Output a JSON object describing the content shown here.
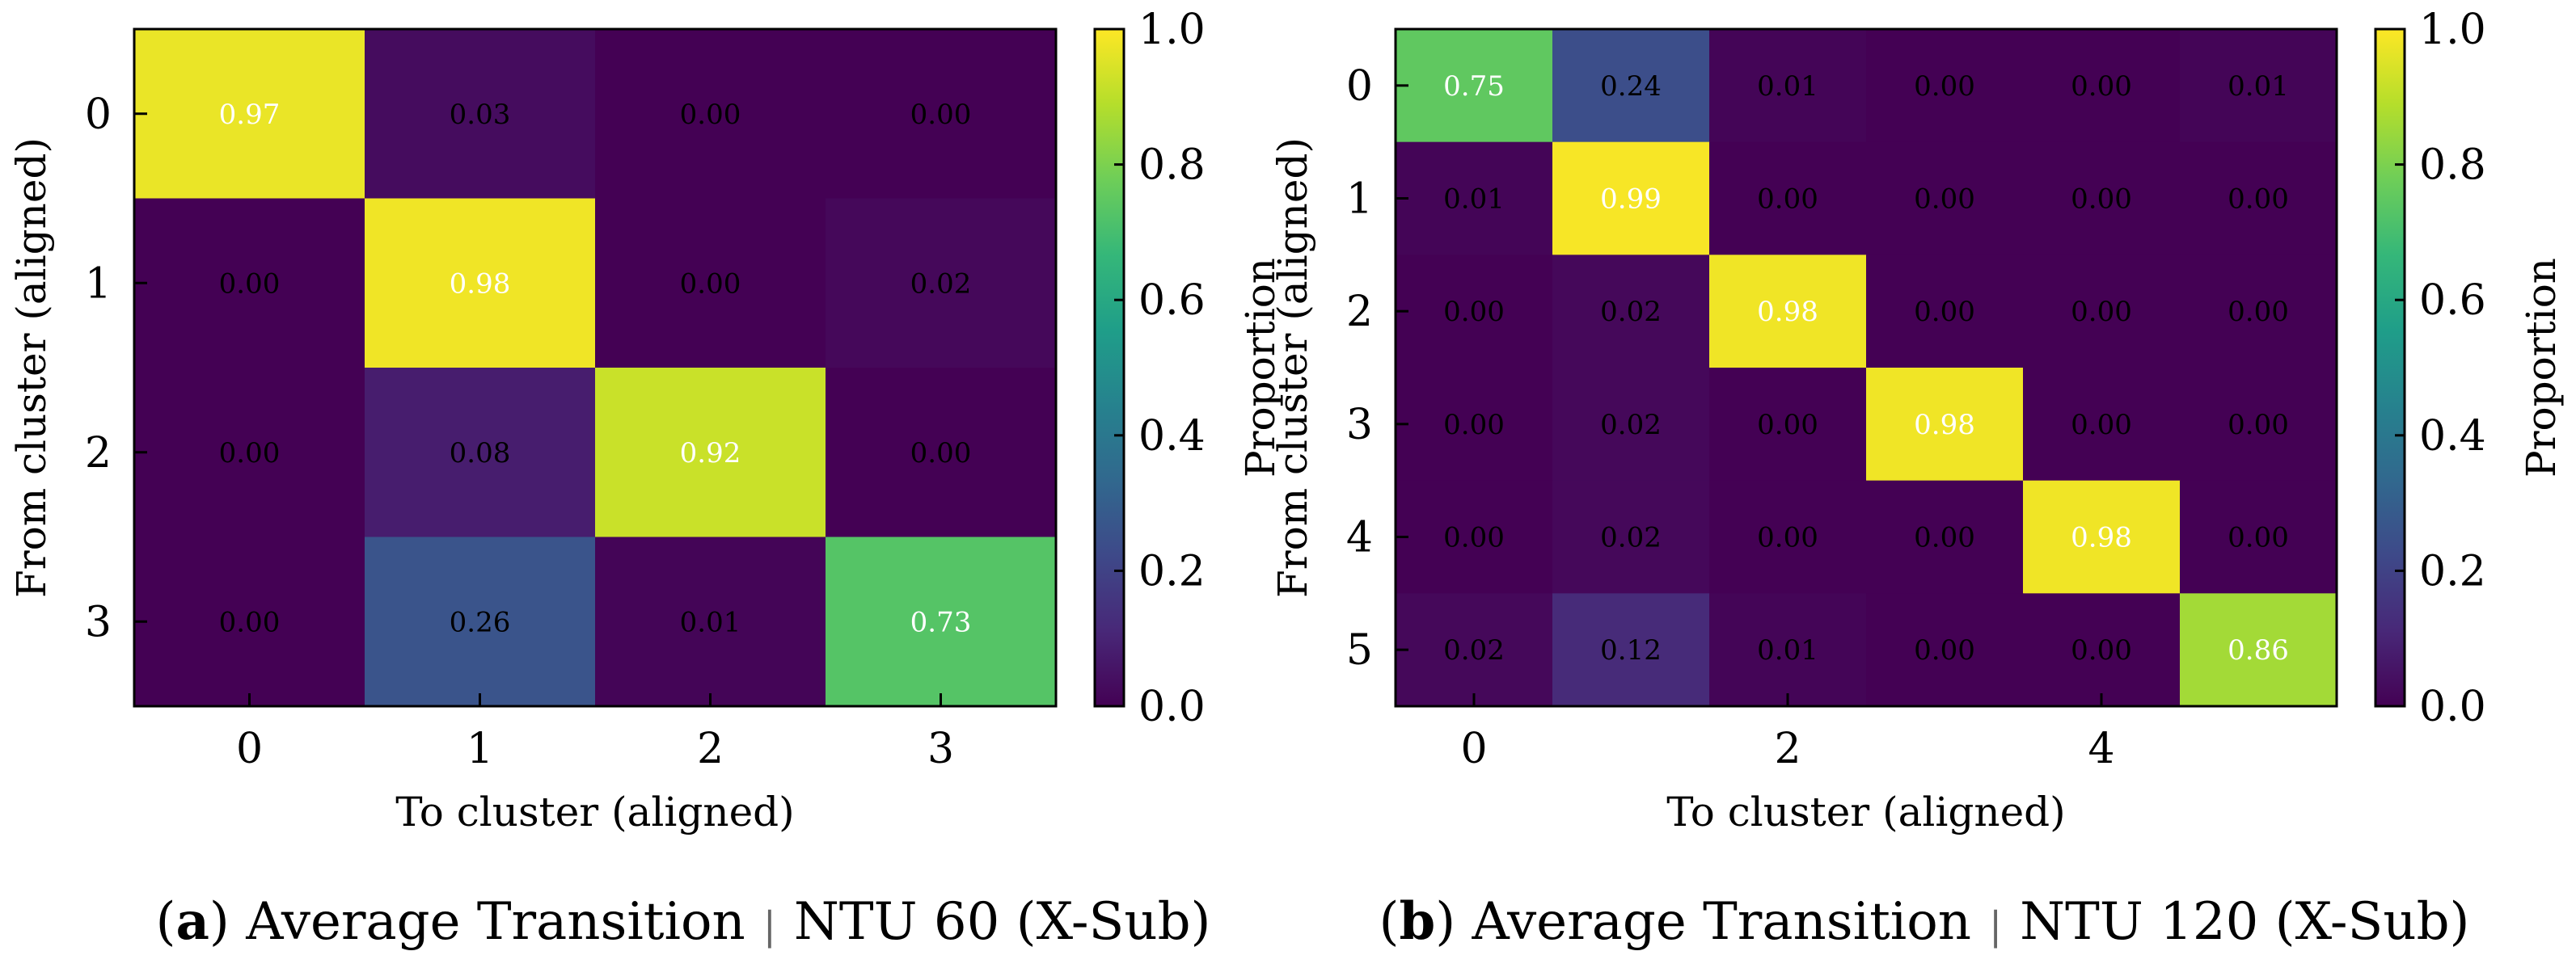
{
  "chart_data": [
    {
      "type": "heatmap",
      "panel_letter": "a",
      "title_prefix": ") Average Transition",
      "title_suffix": "NTU 60 (X-Sub)",
      "xlabel": "To cluster (aligned)",
      "ylabel": "From cluster (aligned)",
      "colorbar_label": "Proportion",
      "rows": [
        0,
        1,
        2,
        3
      ],
      "cols": [
        0,
        1,
        2,
        3
      ],
      "x_ticks": [
        0,
        1,
        2,
        3
      ],
      "y_ticks": [
        0,
        1,
        2,
        3
      ],
      "values": [
        [
          0.97,
          0.03,
          0.0,
          0.0
        ],
        [
          0.0,
          0.98,
          0.0,
          0.02
        ],
        [
          0.0,
          0.08,
          0.92,
          0.0
        ],
        [
          0.0,
          0.26,
          0.01,
          0.73
        ]
      ],
      "colorbar_ticks": [
        "0.0",
        "0.2",
        "0.4",
        "0.6",
        "0.8",
        "1.0"
      ],
      "vmin": 0.0,
      "vmax": 1.0,
      "colormap": "viridis"
    },
    {
      "type": "heatmap",
      "panel_letter": "b",
      "title_prefix": ") Average Transition",
      "title_suffix": "NTU 120 (X-Sub)",
      "xlabel": "To cluster (aligned)",
      "ylabel": "From cluster (aligned)",
      "colorbar_label": "Proportion",
      "rows": [
        0,
        1,
        2,
        3,
        4,
        5
      ],
      "cols": [
        0,
        1,
        2,
        3,
        4,
        5
      ],
      "x_ticks": [
        0,
        2,
        4
      ],
      "y_ticks": [
        0,
        1,
        2,
        3,
        4,
        5
      ],
      "values": [
        [
          0.75,
          0.24,
          0.01,
          0.0,
          0.0,
          0.01
        ],
        [
          0.01,
          0.99,
          0.0,
          0.0,
          0.0,
          0.0
        ],
        [
          0.0,
          0.02,
          0.98,
          0.0,
          0.0,
          0.0
        ],
        [
          0.0,
          0.02,
          0.0,
          0.98,
          0.0,
          0.0
        ],
        [
          0.0,
          0.02,
          0.0,
          0.0,
          0.98,
          0.0
        ],
        [
          0.02,
          0.12,
          0.01,
          0.0,
          0.0,
          0.86
        ]
      ],
      "colorbar_ticks": [
        "0.0",
        "0.2",
        "0.4",
        "0.6",
        "0.8",
        "1.0"
      ],
      "vmin": 0.0,
      "vmax": 1.0,
      "colormap": "viridis"
    }
  ]
}
